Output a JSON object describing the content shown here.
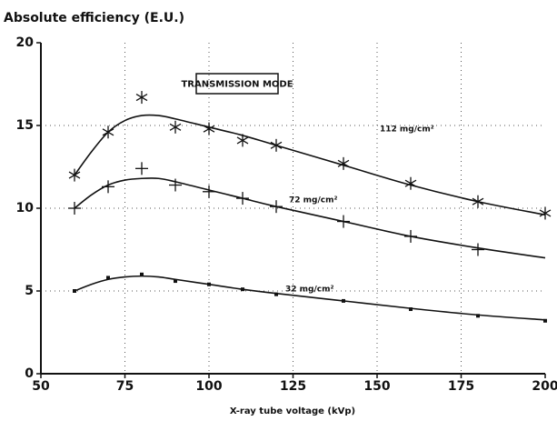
{
  "chart_data": {
    "type": "scatter",
    "title": "Absolute efficiency (E.U.)",
    "x_label": "X-ray tube voltage (kVp)",
    "annotation": "TRANSMISSION MODE",
    "x": [
      60,
      70,
      80,
      90,
      100,
      110,
      120,
      140,
      160,
      180,
      200
    ],
    "fit_x": [
      60,
      65,
      70,
      75,
      80,
      85,
      90,
      100,
      110,
      120,
      140,
      160,
      180,
      200
    ],
    "series": [
      {
        "name": "112 mg/cm²",
        "marker": "asterisk",
        "color": "#111111",
        "values": [
          12.0,
          14.6,
          16.7,
          14.9,
          14.8,
          14.1,
          13.8,
          12.7,
          11.5,
          10.4,
          9.7
        ],
        "fit": [
          12.0,
          13.4,
          14.6,
          15.3,
          15.6,
          15.6,
          15.4,
          14.9,
          14.4,
          13.8,
          12.6,
          11.4,
          10.4,
          9.6
        ]
      },
      {
        "name": "72 mg/cm²",
        "marker": "plus",
        "color": "#111111",
        "values": [
          10.0,
          11.3,
          12.4,
          11.4,
          11.0,
          10.6,
          10.1,
          9.2,
          8.3,
          7.5,
          null
        ],
        "fit": [
          10.0,
          10.8,
          11.4,
          11.7,
          11.8,
          11.8,
          11.6,
          11.1,
          10.6,
          10.1,
          9.2,
          8.3,
          7.6,
          7.0
        ]
      },
      {
        "name": "32 mg/cm²",
        "marker": "square",
        "color": "#111111",
        "values": [
          5.0,
          5.8,
          6.0,
          5.6,
          5.4,
          5.1,
          4.8,
          4.4,
          3.9,
          3.5,
          3.2
        ],
        "fit": [
          5.0,
          5.4,
          5.7,
          5.85,
          5.9,
          5.85,
          5.7,
          5.4,
          5.1,
          4.85,
          4.4,
          3.95,
          3.55,
          3.25
        ]
      }
    ],
    "xlim": [
      50,
      200
    ],
    "ylim": [
      0,
      20
    ],
    "xticks": [
      50,
      75,
      100,
      125,
      150,
      175,
      200
    ],
    "yticks": [
      0,
      5,
      10,
      15,
      20
    ],
    "grid": true
  }
}
